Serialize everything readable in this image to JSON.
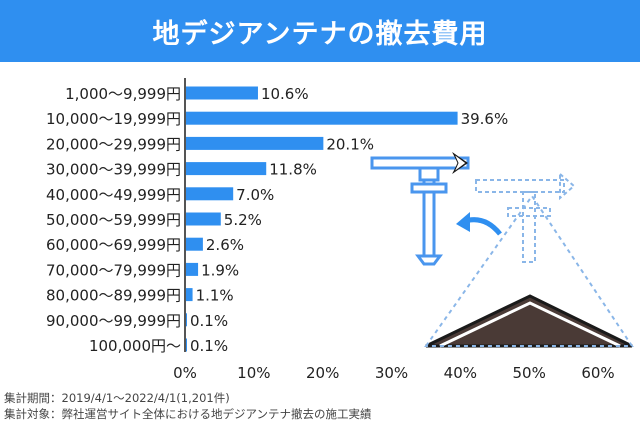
{
  "title": "地デジアンテナの撤去費用",
  "footer": {
    "period": "集計期間：2019/4/1〜2022/4/1(1,201件)",
    "scope": "集計対象：弊社運営サイト全体における地デジアンテナ撤去の施工実績"
  },
  "colors": {
    "banner": "#2f8ff0",
    "bar": "#2f8ff0",
    "axis": "#555555",
    "text": "#222222"
  },
  "chart_data": {
    "type": "bar",
    "orientation": "horizontal",
    "categories": [
      "1,000〜9,999円",
      "10,000〜19,999円",
      "20,000〜29,999円",
      "30,000〜39,999円",
      "40,000〜49,999円",
      "50,000〜59,999円",
      "60,000〜69,999円",
      "70,000〜79,999円",
      "80,000〜89,999円",
      "90,000〜99,999円",
      "100,000円〜"
    ],
    "values": [
      10.6,
      39.6,
      20.1,
      11.8,
      7.0,
      5.2,
      2.6,
      1.9,
      1.1,
      0.1,
      0.1
    ],
    "value_labels": [
      "10.6%",
      "39.6%",
      "20.1%",
      "11.8%",
      "7.0%",
      "5.2%",
      "2.6%",
      "1.9%",
      "1.1%",
      "0.1%",
      "0.1%"
    ],
    "xlim": [
      0,
      60
    ],
    "xticks": [
      0,
      10,
      20,
      30,
      40,
      50,
      60
    ],
    "xtick_labels": [
      "0%",
      "10%",
      "20%",
      "30%",
      "40%",
      "50%",
      "60%"
    ],
    "grid": false
  }
}
